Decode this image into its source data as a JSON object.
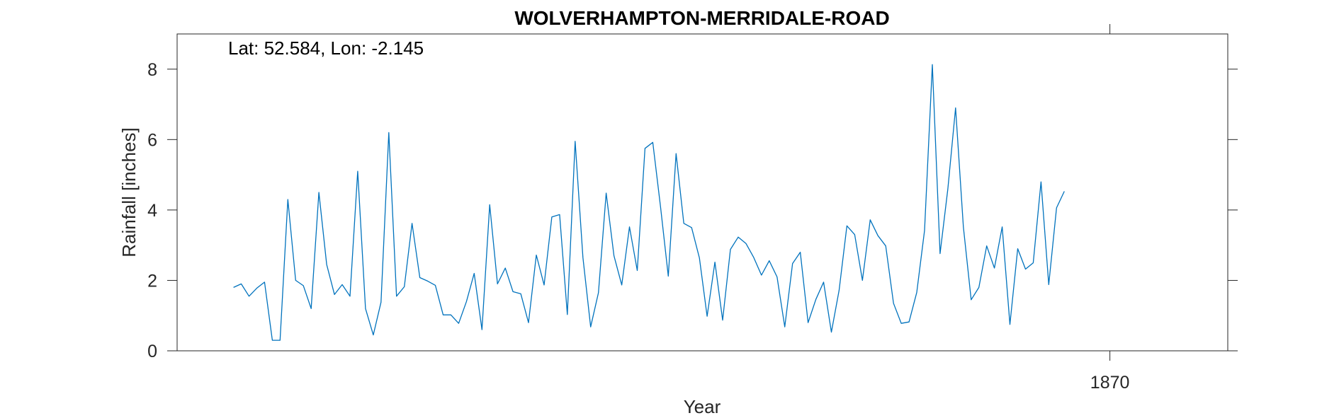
{
  "chart_data": {
    "type": "line",
    "title": "WOLVERHAMPTON-MERRIDALE-ROAD",
    "annotation": "Lat: 52.584, Lon: -2.145",
    "xlabel": "Year",
    "ylabel": "Rainfall [inches]",
    "x_ticks": [
      {
        "value": 1870,
        "label": "1870"
      }
    ],
    "y_ticks": [
      {
        "value": 0,
        "label": "0"
      },
      {
        "value": 2,
        "label": "2"
      },
      {
        "value": 4,
        "label": "4"
      },
      {
        "value": 6,
        "label": "6"
      },
      {
        "value": 8,
        "label": "8"
      }
    ],
    "xlim": [
      1866.36,
      1870.46
    ],
    "ylim": [
      0,
      9
    ],
    "grid": false,
    "series": [
      {
        "color": "#0072BD",
        "x_start": 1866.58,
        "x_step": 0.0303,
        "values": [
          1.8,
          1.9,
          1.55,
          1.78,
          1.95,
          0.3,
          0.3,
          4.3,
          2.0,
          1.85,
          1.2,
          4.5,
          2.45,
          1.6,
          1.88,
          1.55,
          5.1,
          1.2,
          0.45,
          1.38,
          6.2,
          1.55,
          1.82,
          3.62,
          2.08,
          1.98,
          1.86,
          1.02,
          1.02,
          0.78,
          1.4,
          2.2,
          0.6,
          4.15,
          1.9,
          2.35,
          1.68,
          1.62,
          0.8,
          2.72,
          1.87,
          3.8,
          3.87,
          1.03,
          5.95,
          2.65,
          0.68,
          1.65,
          4.48,
          2.7,
          1.87,
          3.52,
          2.28,
          5.75,
          5.92,
          4.08,
          2.12,
          5.6,
          3.62,
          3.5,
          2.64,
          0.98,
          2.52,
          0.87,
          2.88,
          3.23,
          3.05,
          2.65,
          2.15,
          2.56,
          2.1,
          0.68,
          2.48,
          2.8,
          0.8,
          1.46,
          1.95,
          0.53,
          1.72,
          3.55,
          3.3,
          2.0,
          3.72,
          3.27,
          2.98,
          1.35,
          0.78,
          0.82,
          1.66,
          3.42,
          8.13,
          2.76,
          4.6,
          6.9,
          3.52,
          1.45,
          1.8,
          2.98,
          2.35,
          3.52,
          0.75,
          2.9,
          2.32,
          2.5,
          4.8,
          1.88,
          4.06,
          4.53
        ]
      }
    ]
  }
}
